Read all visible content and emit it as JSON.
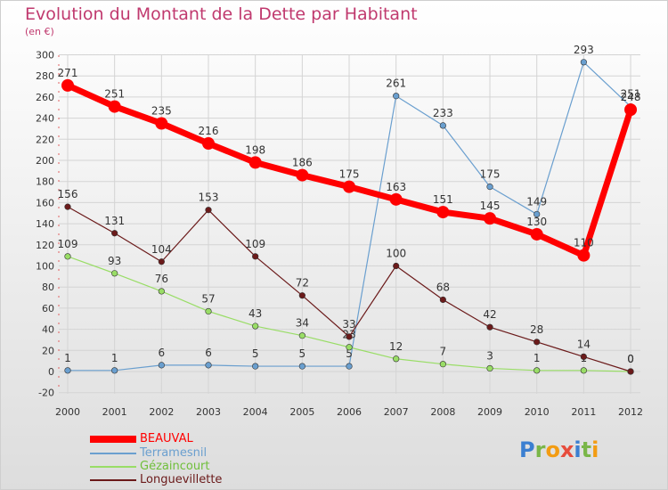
{
  "title": "Evolution du Montant de la Dette par Habitant",
  "unit": "(en €)",
  "brand": "Proxiti",
  "chart_data": {
    "type": "line",
    "x": [
      2000,
      2001,
      2002,
      2003,
      2004,
      2005,
      2006,
      2007,
      2008,
      2009,
      2010,
      2011,
      2012
    ],
    "ylim": [
      -20,
      300
    ],
    "yticks": [
      -20,
      0,
      20,
      40,
      60,
      80,
      100,
      120,
      140,
      160,
      180,
      200,
      220,
      240,
      260,
      280,
      300
    ],
    "grid": true,
    "legend_position": "bottom-left",
    "series": [
      {
        "name": "BEAUVAL",
        "color": "#ff0000",
        "values": [
          271,
          251,
          235,
          216,
          198,
          186,
          175,
          163,
          151,
          145,
          130,
          110,
          248
        ]
      },
      {
        "name": "Terramesnil",
        "color": "#6a9fcf",
        "values": [
          1,
          1,
          6,
          6,
          5,
          5,
          5,
          261,
          233,
          175,
          149,
          293,
          251
        ]
      },
      {
        "name": "Gézaincourt",
        "color": "#99dd66",
        "values": [
          109,
          93,
          76,
          57,
          43,
          34,
          23,
          12,
          7,
          3,
          1,
          1,
          0
        ]
      },
      {
        "name": "Longuevillette",
        "color": "#6b1a1a",
        "values": [
          156,
          131,
          104,
          153,
          109,
          72,
          33,
          100,
          68,
          42,
          28,
          14,
          0
        ]
      }
    ]
  }
}
